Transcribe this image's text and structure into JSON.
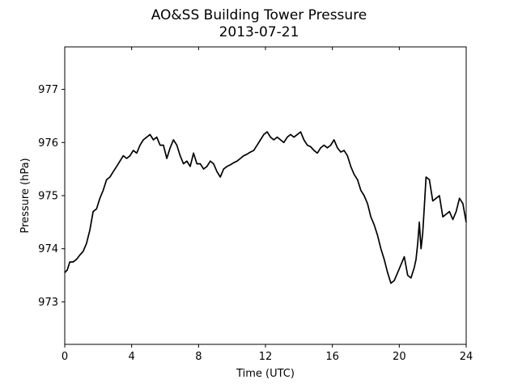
{
  "chart_data": {
    "type": "line",
    "title": "AO&SS Building Tower Pressure",
    "subtitle": "2013-07-21",
    "xlabel": "Time (UTC)",
    "ylabel": "Pressure (hPa)",
    "xlim": [
      0,
      24
    ],
    "ylim": [
      972.2,
      977.8
    ],
    "xticks": [
      0,
      4,
      8,
      12,
      16,
      20,
      24
    ],
    "yticks": [
      973,
      974,
      975,
      976,
      977
    ],
    "grid": false,
    "legend": "none",
    "line_color": "#000000",
    "series": [
      {
        "x": [
          0.0,
          0.15,
          0.3,
          0.5,
          0.7,
          0.9,
          1.1,
          1.3,
          1.5,
          1.7,
          1.9,
          2.1,
          2.3,
          2.5,
          2.7,
          2.9,
          3.1,
          3.3,
          3.5,
          3.7,
          3.9,
          4.1,
          4.3,
          4.5,
          4.7,
          4.9,
          5.1,
          5.3,
          5.5,
          5.7,
          5.9,
          6.1,
          6.3,
          6.5,
          6.7,
          6.9,
          7.1,
          7.3,
          7.5,
          7.7,
          7.9,
          8.1,
          8.3,
          8.5,
          8.7,
          8.9,
          9.1,
          9.3,
          9.5,
          9.7,
          9.9,
          10.1,
          10.3,
          10.5,
          10.7,
          10.9,
          11.1,
          11.3,
          11.5,
          11.7,
          11.9,
          12.1,
          12.3,
          12.5,
          12.7,
          12.9,
          13.1,
          13.3,
          13.5,
          13.7,
          13.9,
          14.1,
          14.3,
          14.5,
          14.7,
          14.9,
          15.1,
          15.3,
          15.5,
          15.7,
          15.9,
          16.1,
          16.3,
          16.5,
          16.7,
          16.9,
          17.1,
          17.3,
          17.5,
          17.7,
          17.9,
          18.1,
          18.3,
          18.5,
          18.7,
          18.9,
          19.1,
          19.3,
          19.5,
          19.7,
          19.9,
          20.1,
          20.3,
          20.5,
          20.7,
          20.9,
          21.0,
          21.1,
          21.2,
          21.3,
          21.4,
          21.5,
          21.6,
          21.8,
          22.0,
          22.2,
          22.4,
          22.6,
          22.8,
          23.0,
          23.2,
          23.4,
          23.6,
          23.8,
          24.0
        ],
        "values": [
          973.55,
          973.6,
          973.75,
          973.75,
          973.8,
          973.88,
          973.95,
          974.1,
          974.35,
          974.7,
          974.75,
          974.95,
          975.1,
          975.3,
          975.35,
          975.45,
          975.55,
          975.65,
          975.75,
          975.7,
          975.75,
          975.85,
          975.8,
          975.95,
          976.05,
          976.1,
          976.15,
          976.05,
          976.1,
          975.95,
          975.95,
          975.7,
          975.9,
          976.05,
          975.95,
          975.75,
          975.6,
          975.65,
          975.55,
          975.8,
          975.6,
          975.6,
          975.5,
          975.55,
          975.65,
          975.6,
          975.45,
          975.35,
          975.5,
          975.55,
          975.58,
          975.62,
          975.65,
          975.7,
          975.75,
          975.78,
          975.82,
          975.85,
          975.95,
          976.05,
          976.15,
          976.2,
          976.1,
          976.05,
          976.1,
          976.05,
          976.0,
          976.1,
          976.15,
          976.1,
          976.15,
          976.2,
          976.05,
          975.95,
          975.92,
          975.85,
          975.8,
          975.9,
          975.95,
          975.9,
          975.95,
          976.05,
          975.9,
          975.82,
          975.85,
          975.75,
          975.55,
          975.4,
          975.3,
          975.1,
          975.0,
          974.85,
          974.6,
          974.45,
          974.25,
          974.0,
          973.8,
          973.55,
          973.35,
          973.4,
          973.55,
          973.7,
          973.85,
          973.5,
          973.45,
          973.65,
          973.8,
          974.1,
          974.5,
          974.0,
          974.3,
          974.8,
          975.35,
          975.3,
          974.9,
          974.95,
          975.0,
          974.6,
          974.65,
          974.7,
          974.55,
          974.7,
          974.95,
          974.85,
          974.5
        ]
      }
    ]
  }
}
